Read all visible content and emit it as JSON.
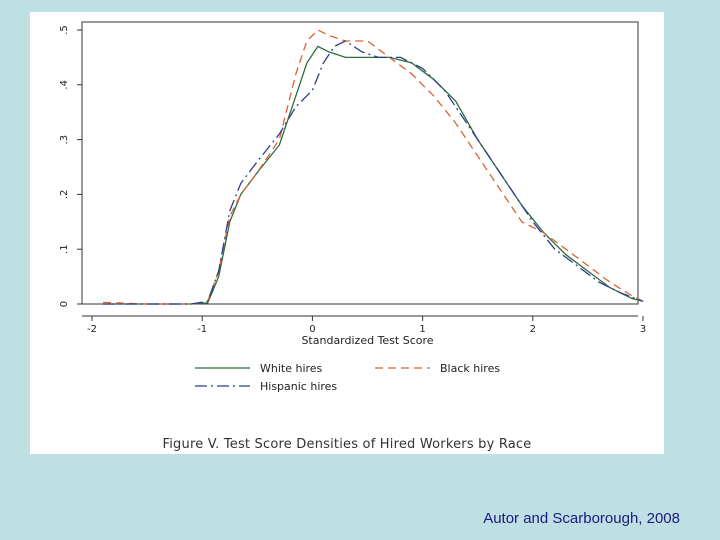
{
  "slide": {
    "background": "#bfe0e2",
    "attribution": "Autor and Scarborough, 2008"
  },
  "figure": {
    "caption": "Figure V. Test Score Densities of Hired Workers by Race"
  },
  "chart_data": {
    "type": "line",
    "title": "",
    "xlabel": "Standardized Test Score",
    "ylabel": "",
    "xlim": [
      -2,
      3
    ],
    "ylim": [
      0,
      0.5
    ],
    "x_ticks": [
      -2,
      -1,
      0,
      1,
      2,
      3
    ],
    "x_tick_labels": [
      "-2",
      "-1",
      "0",
      "1",
      "2",
      "3"
    ],
    "y_ticks": [
      0,
      0.1,
      0.2,
      0.3,
      0.4,
      0.5
    ],
    "y_tick_labels": [
      "0",
      ".1",
      ".2",
      ".3",
      ".4",
      ".5"
    ],
    "grid": false,
    "legend_position": "bottom",
    "series": [
      {
        "name": "White hires",
        "color": "#2e6b3a",
        "dash": "solid",
        "points": [
          [
            -1.9,
            0.0
          ],
          [
            -1.5,
            0.0
          ],
          [
            -1.1,
            0.0
          ],
          [
            -0.95,
            0.002
          ],
          [
            -0.85,
            0.05
          ],
          [
            -0.75,
            0.15
          ],
          [
            -0.65,
            0.2
          ],
          [
            -0.5,
            0.24
          ],
          [
            -0.3,
            0.29
          ],
          [
            -0.15,
            0.38
          ],
          [
            -0.05,
            0.44
          ],
          [
            0.05,
            0.47
          ],
          [
            0.15,
            0.46
          ],
          [
            0.3,
            0.45
          ],
          [
            0.5,
            0.45
          ],
          [
            0.7,
            0.45
          ],
          [
            0.9,
            0.44
          ],
          [
            1.1,
            0.41
          ],
          [
            1.3,
            0.37
          ],
          [
            1.5,
            0.3
          ],
          [
            1.7,
            0.24
          ],
          [
            1.9,
            0.18
          ],
          [
            2.1,
            0.13
          ],
          [
            2.3,
            0.09
          ],
          [
            2.5,
            0.06
          ],
          [
            2.7,
            0.03
          ],
          [
            2.9,
            0.01
          ],
          [
            3.0,
            0.005
          ]
        ]
      },
      {
        "name": "Black hires",
        "color": "#e06030",
        "dash": "8,5",
        "points": [
          [
            -1.9,
            0.003
          ],
          [
            -1.5,
            0.0
          ],
          [
            -1.1,
            0.0
          ],
          [
            -0.95,
            0.005
          ],
          [
            -0.85,
            0.06
          ],
          [
            -0.75,
            0.16
          ],
          [
            -0.65,
            0.2
          ],
          [
            -0.5,
            0.24
          ],
          [
            -0.3,
            0.3
          ],
          [
            -0.15,
            0.42
          ],
          [
            -0.05,
            0.48
          ],
          [
            0.05,
            0.5
          ],
          [
            0.15,
            0.49
          ],
          [
            0.3,
            0.48
          ],
          [
            0.5,
            0.48
          ],
          [
            0.7,
            0.45
          ],
          [
            0.9,
            0.42
          ],
          [
            1.1,
            0.38
          ],
          [
            1.3,
            0.33
          ],
          [
            1.5,
            0.27
          ],
          [
            1.7,
            0.21
          ],
          [
            1.9,
            0.15
          ],
          [
            2.1,
            0.13
          ],
          [
            2.3,
            0.1
          ],
          [
            2.5,
            0.07
          ],
          [
            2.7,
            0.04
          ],
          [
            2.9,
            0.015
          ],
          [
            3.0,
            0.005
          ]
        ]
      },
      {
        "name": "Hispanic hires",
        "color": "#2a3f8a",
        "dash": "12,4,2,4",
        "points": [
          [
            -1.9,
            0.0
          ],
          [
            -1.5,
            0.0
          ],
          [
            -1.1,
            0.0
          ],
          [
            -0.95,
            0.005
          ],
          [
            -0.85,
            0.06
          ],
          [
            -0.75,
            0.17
          ],
          [
            -0.65,
            0.22
          ],
          [
            -0.5,
            0.26
          ],
          [
            -0.3,
            0.31
          ],
          [
            -0.15,
            0.36
          ],
          [
            0.0,
            0.39
          ],
          [
            0.1,
            0.44
          ],
          [
            0.2,
            0.47
          ],
          [
            0.3,
            0.48
          ],
          [
            0.45,
            0.46
          ],
          [
            0.6,
            0.45
          ],
          [
            0.8,
            0.45
          ],
          [
            1.0,
            0.43
          ],
          [
            1.2,
            0.39
          ],
          [
            1.4,
            0.33
          ],
          [
            1.6,
            0.27
          ],
          [
            1.8,
            0.21
          ],
          [
            2.0,
            0.15
          ],
          [
            2.2,
            0.1
          ],
          [
            2.4,
            0.07
          ],
          [
            2.6,
            0.04
          ],
          [
            2.8,
            0.02
          ],
          [
            3.0,
            0.005
          ]
        ]
      }
    ]
  }
}
